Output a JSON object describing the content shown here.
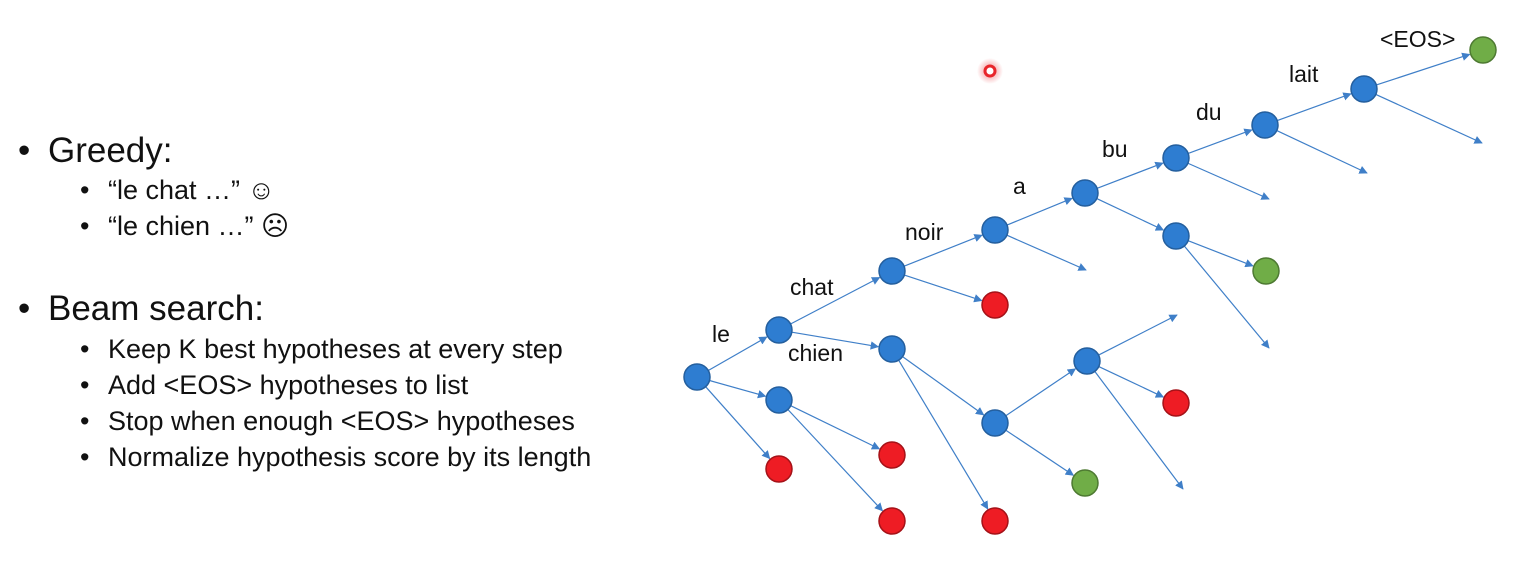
{
  "bullets": {
    "greedy": {
      "title": "Greedy:",
      "items": [
        "“le chat  …” ☺",
        "“le chien …” ☹"
      ]
    },
    "beam": {
      "title": "Beam search:",
      "items": [
        "Keep K best hypotheses at every step",
        "Add <EOS> hypotheses to list",
        "Stop when enough <EOS> hypotheses",
        "Normalize hypothesis score by its length"
      ]
    }
  },
  "tree": {
    "words": {
      "le": "le",
      "chat": "chat",
      "chien": "chien",
      "noir": "noir",
      "a": "a",
      "bu": "bu",
      "du": "du",
      "lait": "lait",
      "eos": "<EOS>"
    },
    "colors": {
      "active": "#2e7dd1",
      "pruned": "#ee1c24",
      "finished": "#70ad47",
      "edge": "#3f7fc8",
      "laser": "#e8262b"
    }
  }
}
